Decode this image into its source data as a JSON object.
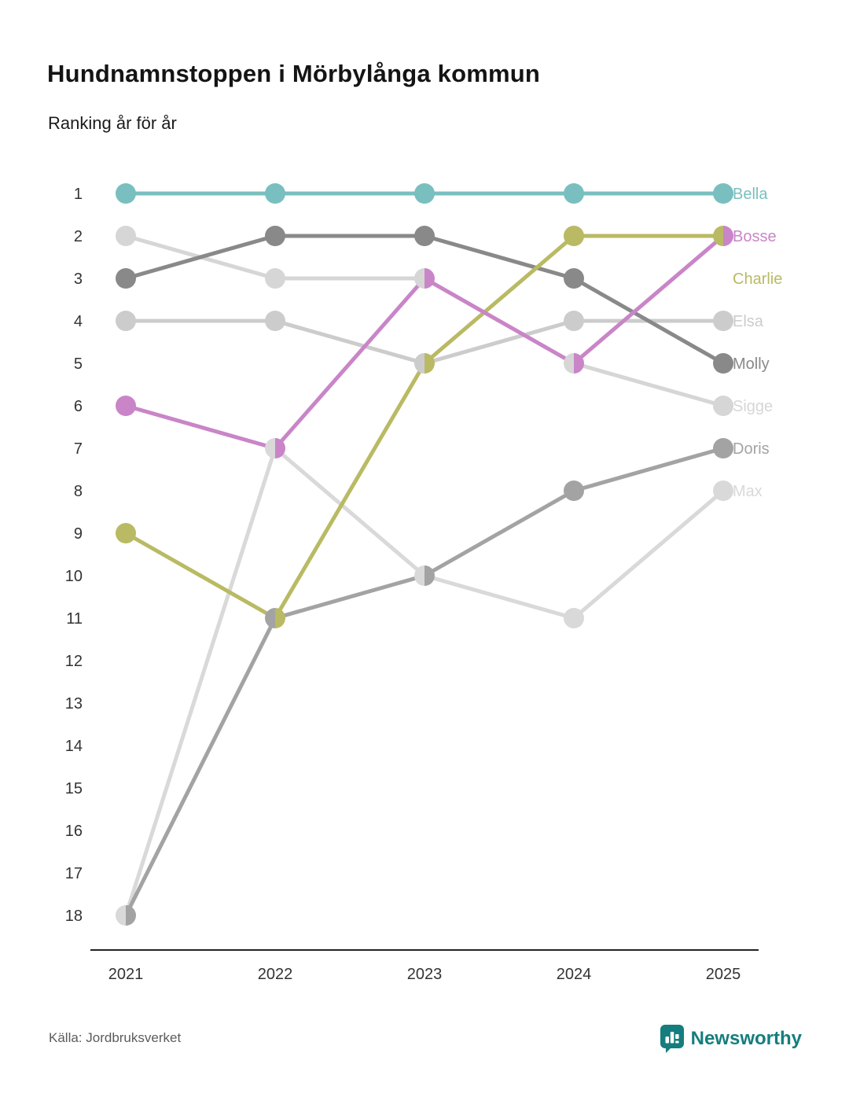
{
  "header": {
    "title": "Hundnamnstoppen i Mörbylånga kommun",
    "subtitle": "Ranking år för år"
  },
  "footer": {
    "source": "Källa: Jordbruksverket",
    "brand": "Newsworthy"
  },
  "brand_color": "#157d7d",
  "chart_data": {
    "type": "line",
    "subtype": "bump-ranking",
    "title": "Hundnamnstoppen i Mörbylånga kommun",
    "subtitle": "Ranking år för år",
    "x": [
      "2021",
      "2022",
      "2023",
      "2024",
      "2025"
    ],
    "yticks": [
      1,
      2,
      3,
      4,
      5,
      6,
      7,
      8,
      9,
      10,
      11,
      12,
      13,
      14,
      15,
      16,
      17,
      18
    ],
    "ylim": [
      1,
      18
    ],
    "y_inverted": true,
    "grid": false,
    "legend_position": "right-of-last-point",
    "series": [
      {
        "name": "Sigge",
        "values": [
          2,
          3,
          3,
          5,
          6
        ],
        "color": "#d6d6d6",
        "label_rank": 6
      },
      {
        "name": "Elsa",
        "values": [
          4,
          4,
          5,
          4,
          4
        ],
        "color": "#cccccc",
        "label_rank": 4
      },
      {
        "name": "Max",
        "values": [
          18,
          7,
          10,
          11,
          8
        ],
        "color": "#d9d9d9",
        "label_rank": 8
      },
      {
        "name": "Doris",
        "values": [
          18,
          11,
          10,
          8,
          7
        ],
        "color": "#a3a3a3",
        "label_rank": 7
      },
      {
        "name": "Molly",
        "values": [
          3,
          2,
          2,
          3,
          5
        ],
        "color": "#898989",
        "label_rank": 5
      },
      {
        "name": "Charlie",
        "values": [
          9,
          11,
          5,
          2,
          2
        ],
        "color": "#b9ba63",
        "label_rank": 3
      },
      {
        "name": "Bosse",
        "values": [
          6,
          7,
          3,
          5,
          2
        ],
        "color": "#c985c8",
        "label_rank": 2
      },
      {
        "name": "Bella",
        "values": [
          1,
          1,
          1,
          1,
          1
        ],
        "color": "#7abfbf",
        "label_rank": 1
      }
    ]
  }
}
